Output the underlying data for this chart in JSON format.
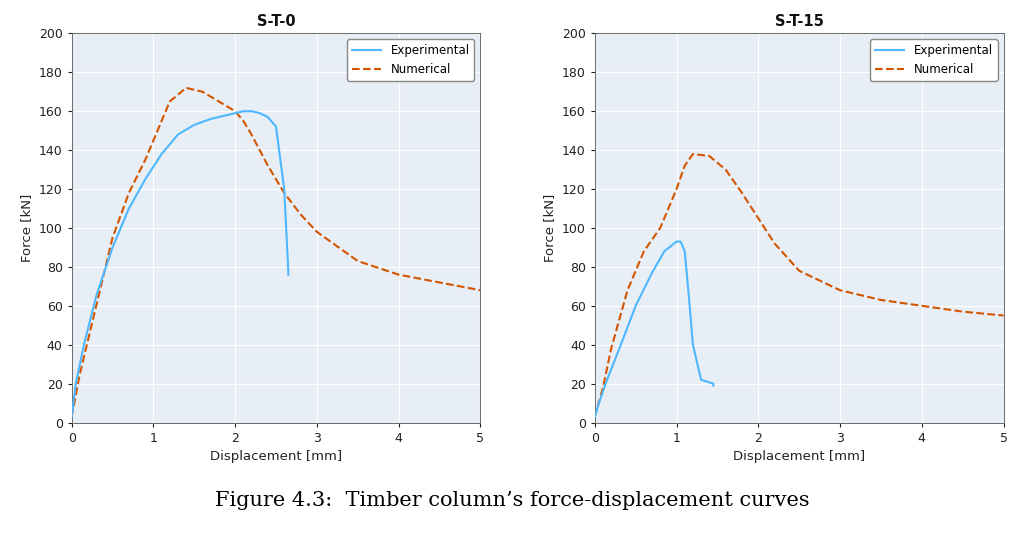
{
  "plot1": {
    "title": "S-T-0",
    "exp_x": [
      0,
      0.05,
      0.15,
      0.3,
      0.5,
      0.7,
      0.9,
      1.1,
      1.3,
      1.5,
      1.7,
      1.9,
      2.0,
      2.1,
      2.2,
      2.3,
      2.4,
      2.5,
      2.6,
      2.65,
      2.65
    ],
    "exp_y": [
      3,
      20,
      40,
      65,
      90,
      110,
      125,
      138,
      148,
      153,
      156,
      158,
      159,
      160,
      160,
      159,
      157,
      152,
      120,
      78,
      76
    ],
    "num_x": [
      0,
      0.1,
      0.3,
      0.5,
      0.7,
      0.9,
      1.0,
      1.1,
      1.2,
      1.4,
      1.6,
      1.8,
      2.0,
      2.1,
      2.2,
      2.4,
      2.6,
      2.8,
      3.0,
      3.5,
      4.0,
      4.5,
      5.0
    ],
    "num_y": [
      3,
      25,
      60,
      95,
      118,
      135,
      145,
      155,
      165,
      172,
      170,
      165,
      160,
      155,
      148,
      132,
      118,
      107,
      98,
      83,
      76,
      72,
      68
    ]
  },
  "plot2": {
    "title": "S-T-15",
    "exp_x": [
      0,
      0.05,
      0.15,
      0.3,
      0.5,
      0.7,
      0.85,
      1.0,
      1.05,
      1.1,
      1.15,
      1.2,
      1.3,
      1.45,
      1.45
    ],
    "exp_y": [
      3,
      10,
      22,
      38,
      60,
      77,
      88,
      93,
      93,
      88,
      65,
      40,
      22,
      20,
      19
    ],
    "num_x": [
      0,
      0.1,
      0.2,
      0.4,
      0.6,
      0.8,
      1.0,
      1.1,
      1.2,
      1.4,
      1.6,
      1.8,
      2.0,
      2.2,
      2.5,
      3.0,
      3.5,
      4.0,
      4.5,
      5.0
    ],
    "num_y": [
      3,
      18,
      38,
      68,
      88,
      100,
      120,
      132,
      138,
      137,
      130,
      118,
      105,
      92,
      78,
      68,
      63,
      60,
      57,
      55
    ]
  },
  "exp_color": "#4db8ff",
  "num_color": "#d45500",
  "xlabel": "Displacement [mm]",
  "ylabel": "Force [kN]",
  "xlim": [
    0,
    5
  ],
  "ylim": [
    0,
    200
  ],
  "yticks": [
    0,
    20,
    40,
    60,
    80,
    100,
    120,
    140,
    160,
    180,
    200
  ],
  "xticks": [
    0,
    1,
    2,
    3,
    4,
    5
  ],
  "legend_exp": "Experimental",
  "legend_num": "Numerical",
  "figure_caption": "Figure 4.3:  Timber column’s force-displacement curves",
  "bg_color": "#e8eef5",
  "grid_color": "#ffffff"
}
